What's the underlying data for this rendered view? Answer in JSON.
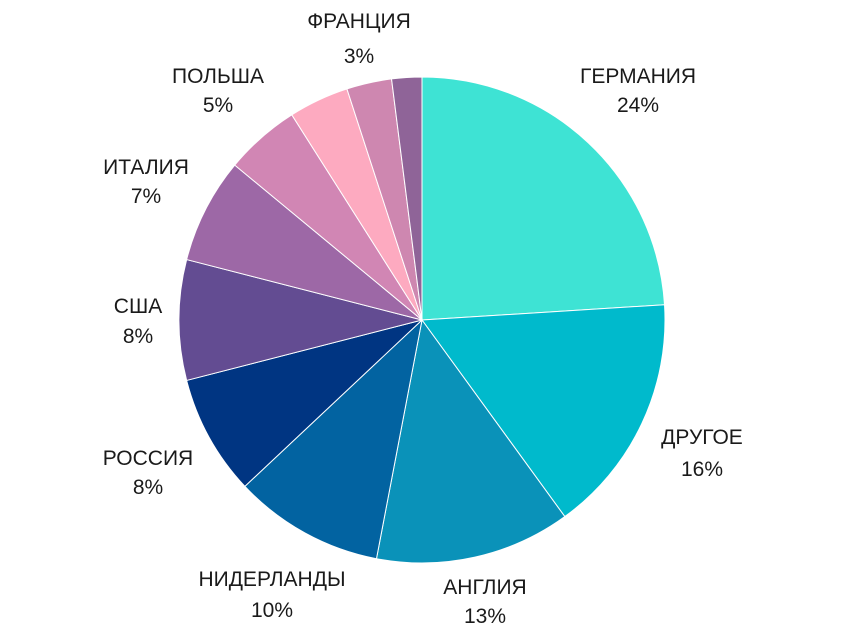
{
  "chart_data": {
    "type": "pie",
    "title": "",
    "slices": [
      {
        "label": "ГЕРМАНИЯ",
        "value": 24,
        "value_label": "24%",
        "color": "#3ee3d4"
      },
      {
        "label": "ДРУГОЕ",
        "value": 16,
        "value_label": "16%",
        "color": "#00bacc"
      },
      {
        "label": "АНГЛИЯ",
        "value": 13,
        "value_label": "13%",
        "color": "#0a92b9"
      },
      {
        "label": "НИДЕРЛАНДЫ",
        "value": 10,
        "value_label": "10%",
        "color": "#0263a1"
      },
      {
        "label": "РОССИЯ",
        "value": 8,
        "value_label": "8%",
        "color": "#003582"
      },
      {
        "label": "США",
        "value": 8,
        "value_label": "8%",
        "color": "#634c92"
      },
      {
        "label": "ИТАЛИЯ",
        "value": 7,
        "value_label": "7%",
        "color": "#9d68a6"
      },
      {
        "label": "ПОЛЬША",
        "value": 5,
        "value_label": "5%",
        "color": "#d186b4"
      },
      {
        "label": "",
        "value": 4,
        "value_label": "",
        "color": "#fdaac0"
      },
      {
        "label": "ФРАНЦИЯ",
        "value": 3,
        "value_label": "3%",
        "color": "#ce87b0"
      },
      {
        "label": "",
        "value": 2,
        "value_label": "",
        "color": "#8f6498"
      }
    ],
    "start_angle": "top",
    "direction": "clockwise",
    "legend": "none"
  }
}
